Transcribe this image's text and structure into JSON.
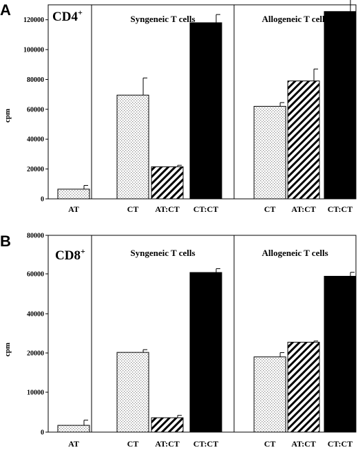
{
  "colors": {
    "dotted": "#b8b8b8",
    "hatched": "#000000",
    "solid": "#000000",
    "axis": "#000000"
  },
  "chart_data": [
    {
      "type": "bar",
      "panel_letter": "A",
      "panel_label": "CD4",
      "panel_label_sup": "+",
      "ylabel": "cpm",
      "ylim": [
        0,
        130000
      ],
      "yticks": [
        0,
        20000,
        40000,
        60000,
        80000,
        100000,
        120000
      ],
      "grid": false,
      "sections": [
        {
          "title": ""
        },
        {
          "title": "Syngeneic T cells"
        },
        {
          "title": "Allogeneic T cells"
        }
      ],
      "bars": [
        {
          "section": 0,
          "label": "AT",
          "value": 6500,
          "error": 2500,
          "pattern": "dotted"
        },
        {
          "section": 1,
          "label": "CT",
          "value": 69500,
          "error": 11500,
          "pattern": "dotted"
        },
        {
          "section": 1,
          "label": "AT:CT",
          "value": 21500,
          "error": 1000,
          "pattern": "hatched"
        },
        {
          "section": 1,
          "label": "CT:CT",
          "value": 118000,
          "error": 5500,
          "pattern": "solid"
        },
        {
          "section": 2,
          "label": "CT",
          "value": 62000,
          "error": 2500,
          "pattern": "dotted"
        },
        {
          "section": 2,
          "label": "AT:CT",
          "value": 79000,
          "error": 8000,
          "pattern": "hatched"
        },
        {
          "section": 2,
          "label": "CT:CT",
          "value": 125500,
          "error": 9000,
          "pattern": "solid"
        }
      ]
    },
    {
      "type": "bar",
      "panel_letter": "B",
      "panel_label": "CD8",
      "panel_label_sup": "+",
      "ylabel": "cpm",
      "ylim": [
        0,
        80000
      ],
      "yticks": [
        0,
        10000,
        20000,
        40000,
        60000,
        80000
      ],
      "ytick_labels": [
        "0",
        "10000",
        "20000",
        "40000",
        "60000",
        "80000"
      ],
      "grid": false,
      "sections": [
        {
          "title": ""
        },
        {
          "title": "Syngeneic T cells"
        },
        {
          "title": "Allogeneic T cells"
        }
      ],
      "bars": [
        {
          "section": 0,
          "label": "AT",
          "value": 1700,
          "error": 1300,
          "pattern": "dotted"
        },
        {
          "section": 1,
          "label": "CT",
          "value": 20300,
          "error": 1400,
          "pattern": "dotted"
        },
        {
          "section": 1,
          "label": "AT:CT",
          "value": 3600,
          "error": 600,
          "pattern": "hatched"
        },
        {
          "section": 1,
          "label": "CT:CT",
          "value": 60700,
          "error": 2000,
          "pattern": "solid"
        },
        {
          "section": 2,
          "label": "CT",
          "value": 19000,
          "error": 1200,
          "pattern": "dotted"
        },
        {
          "section": 2,
          "label": "AT:CT",
          "value": 25500,
          "error": 600,
          "pattern": "hatched"
        },
        {
          "section": 2,
          "label": "CT:CT",
          "value": 58800,
          "error": 2000,
          "pattern": "solid"
        }
      ]
    }
  ]
}
